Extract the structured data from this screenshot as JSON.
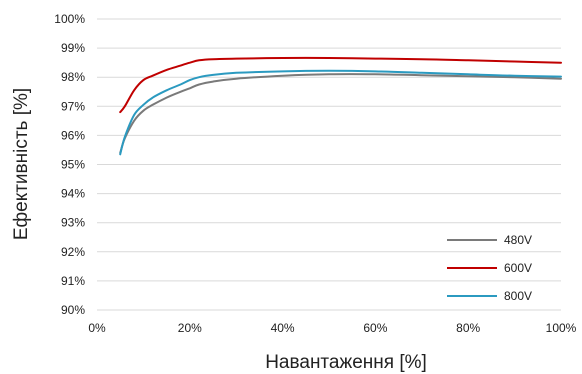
{
  "chart_data": {
    "type": "line",
    "xlabel": "Навантаження [%]",
    "ylabel": "Ефективність [%]",
    "xlim": [
      0,
      100
    ],
    "ylim": [
      90,
      100
    ],
    "x_ticks": [
      "0%",
      "20%",
      "40%",
      "60%",
      "80%",
      "100%"
    ],
    "y_ticks": [
      "90%",
      "91%",
      "92%",
      "93%",
      "94%",
      "95%",
      "96%",
      "97%",
      "98%",
      "99%",
      "100%"
    ],
    "grid": "horizontal",
    "legend_position": "bottom-right",
    "series": [
      {
        "name": "480V",
        "color": "#7a7a7a",
        "x": [
          5,
          6,
          8,
          10,
          12,
          15,
          18,
          20,
          22,
          25,
          30,
          40,
          50,
          60,
          70,
          80,
          90,
          100
        ],
        "y": [
          95.4,
          95.9,
          96.5,
          96.85,
          97.05,
          97.3,
          97.5,
          97.62,
          97.75,
          97.85,
          97.95,
          98.05,
          98.1,
          98.1,
          98.07,
          98.03,
          98.0,
          97.95
        ]
      },
      {
        "name": "600V",
        "color": "#c00000",
        "x": [
          5,
          6,
          8,
          10,
          12,
          15,
          18,
          20,
          22,
          25,
          30,
          40,
          50,
          60,
          70,
          80,
          90,
          100
        ],
        "y": [
          96.8,
          97.0,
          97.55,
          97.9,
          98.05,
          98.25,
          98.4,
          98.5,
          98.58,
          98.62,
          98.64,
          98.66,
          98.66,
          98.64,
          98.62,
          98.58,
          98.54,
          98.5
        ]
      },
      {
        "name": "800V",
        "color": "#2b9ac0",
        "x": [
          5,
          6,
          8,
          10,
          12,
          15,
          18,
          20,
          22,
          25,
          30,
          40,
          50,
          60,
          70,
          80,
          90,
          100
        ],
        "y": [
          95.35,
          95.95,
          96.7,
          97.05,
          97.3,
          97.55,
          97.75,
          97.9,
          98.0,
          98.08,
          98.15,
          98.2,
          98.22,
          98.2,
          98.15,
          98.1,
          98.05,
          98.02
        ]
      }
    ]
  }
}
